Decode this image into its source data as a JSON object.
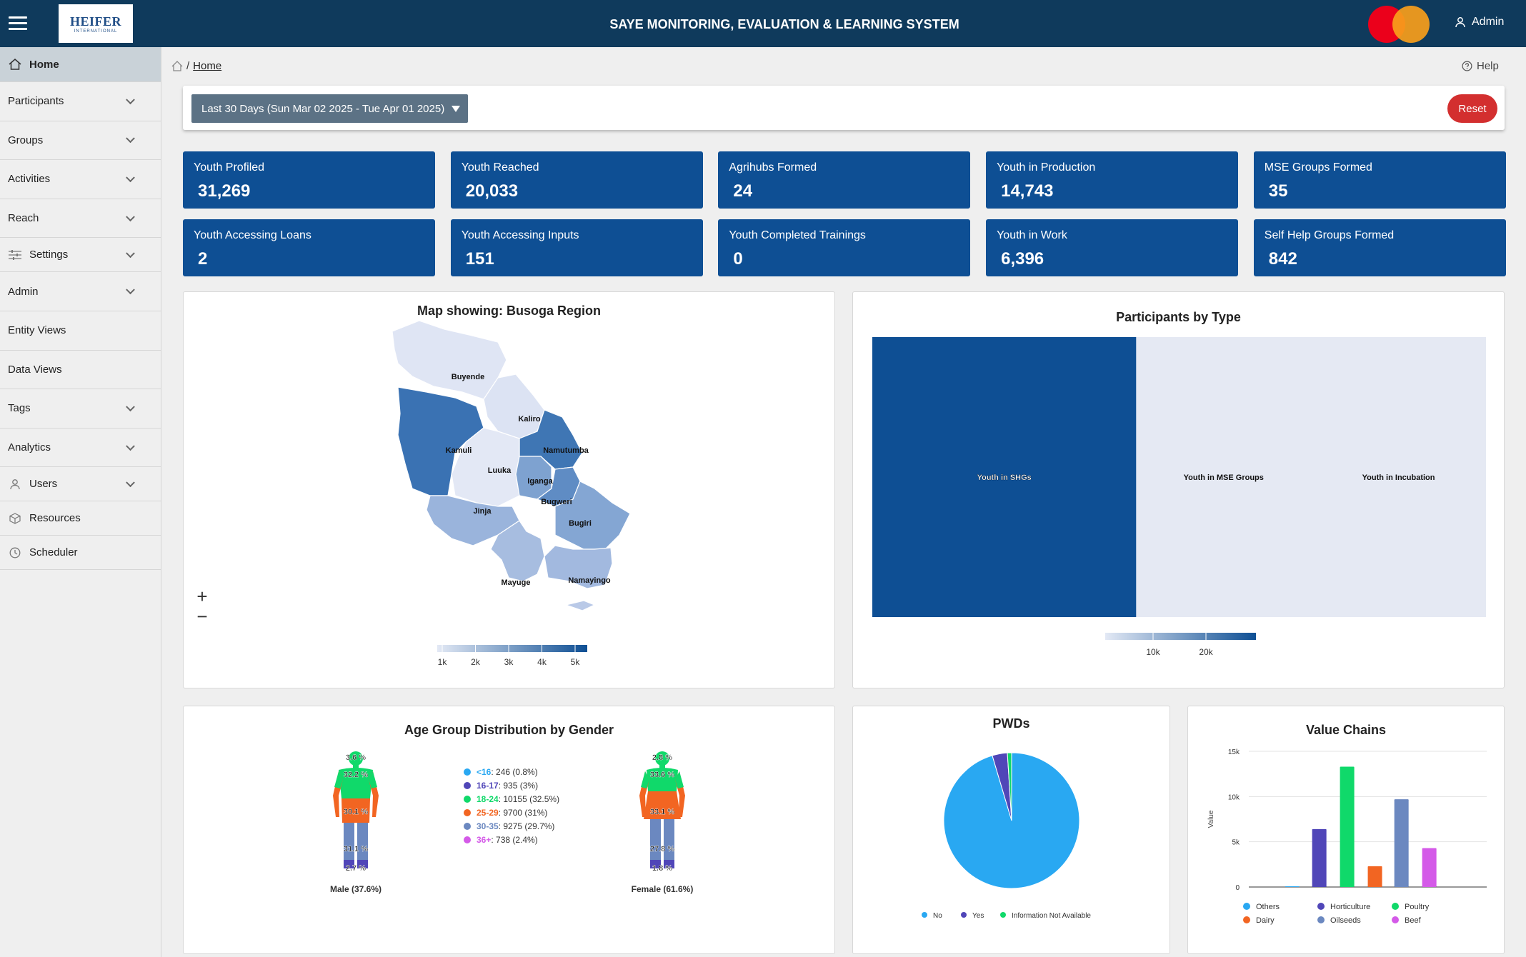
{
  "header": {
    "title": "SAYE MONITORING, EVALUATION & LEARNING SYSTEM",
    "logo_text": "HEIFER",
    "logo_sub": "INTERNATIONAL",
    "user_label": "Admin",
    "icons": {
      "menu": "hamburger-icon",
      "user": "user-icon"
    },
    "colors": {
      "bar": "#0f3a5c"
    }
  },
  "sidebar": {
    "items": [
      {
        "label": "Home",
        "icon": "home-icon",
        "expandable": false
      },
      {
        "label": "Participants",
        "icon": "",
        "expandable": true
      },
      {
        "label": "Groups",
        "icon": "",
        "expandable": true
      },
      {
        "label": "Activities",
        "icon": "",
        "expandable": true
      },
      {
        "label": "Reach",
        "icon": "",
        "expandable": true
      },
      {
        "label": "Settings",
        "icon": "sliders-icon",
        "expandable": true
      },
      {
        "label": "Admin",
        "icon": "",
        "expandable": true
      },
      {
        "label": "Entity Views",
        "icon": "",
        "expandable": false
      },
      {
        "label": "Data Views",
        "icon": "",
        "expandable": false
      },
      {
        "label": "Tags",
        "icon": "",
        "expandable": true
      },
      {
        "label": "Analytics",
        "icon": "",
        "expandable": true
      },
      {
        "label": "Users",
        "icon": "user-icon",
        "expandable": true
      },
      {
        "label": "Resources",
        "icon": "box-icon",
        "expandable": false
      },
      {
        "label": "Scheduler",
        "icon": "clock-icon",
        "expandable": false
      }
    ]
  },
  "breadcrumb": {
    "separator": "/",
    "current": "Home"
  },
  "help_label": "Help",
  "filter": {
    "date_range": "Last 30 Days (Sun Mar 02 2025 - Tue Apr 01 2025)",
    "reset_label": "Reset"
  },
  "kpis": [
    {
      "label": "Youth Profiled",
      "value": "31,269"
    },
    {
      "label": "Youth Reached",
      "value": "20,033"
    },
    {
      "label": "Agrihubs Formed",
      "value": "24"
    },
    {
      "label": "Youth in Production",
      "value": "14,743"
    },
    {
      "label": "MSE Groups Formed",
      "value": "35"
    },
    {
      "label": "Youth Accessing Loans",
      "value": "2"
    },
    {
      "label": "Youth Accessing Inputs",
      "value": "151"
    },
    {
      "label": "Youth Completed Trainings",
      "value": "0"
    },
    {
      "label": "Youth in Work",
      "value": "6,396"
    },
    {
      "label": "Self Help Groups Formed",
      "value": "842"
    }
  ],
  "map": {
    "title": "Map showing: Busoga Region",
    "districts": [
      "Buyende",
      "Kaliro",
      "Kamuli",
      "Namutumba",
      "Luuka",
      "Iganga",
      "Bugweri",
      "Jinja",
      "Bugiri",
      "Mayuge",
      "Namayingo"
    ],
    "legend_ticks": [
      "1k",
      "2k",
      "3k",
      "4k",
      "5k"
    ],
    "zoom_in": "+",
    "zoom_out": "−"
  },
  "chart_data": [
    {
      "type": "heatmap",
      "title": "Participants by Type",
      "categories": [
        "Youth in SHGs",
        "Youth in MSE Groups",
        "Youth in Incubation"
      ],
      "values": [
        27500,
        300,
        120
      ],
      "legend_ticks": [
        "10k",
        "20k"
      ]
    },
    {
      "type": "table",
      "title": "Age Group Distribution by Gender",
      "legend": [
        {
          "range": "<16",
          "text": ": 246 (0.8%)",
          "color": "#29a8f2"
        },
        {
          "range": "16-17",
          "text": ": 935 (3%)",
          "color": "#5046b8"
        },
        {
          "range": "18-24",
          "text": ": 10155 (32.5%)",
          "color": "#10d96a"
        },
        {
          "range": "25-29",
          "text": ": 9700 (31%)",
          "color": "#f26522"
        },
        {
          "range": "30-35",
          "text": ": 9275 (29.7%)",
          "color": "#6b88c0"
        },
        {
          "range": "36+",
          "text": ": 738 (2.4%)",
          "color": "#d45ae8"
        }
      ],
      "male": {
        "label": "Male (37.6%)",
        "pcts": [
          "3.6 %",
          "32.2 %",
          "30.1 %",
          "31.1 %",
          "2.7 %"
        ]
      },
      "female": {
        "label": "Female (61.6%)",
        "pcts": [
          "2.8 %",
          "33.6 %",
          "33.1 %",
          "27.8 %",
          "1.8 %"
        ]
      }
    },
    {
      "type": "pie",
      "title": "PWDs",
      "categories": [
        "No",
        "Yes",
        "Information Not Available"
      ],
      "values": [
        95.4,
        3.6,
        1.0
      ],
      "colors": [
        "#29a8f2",
        "#5046b8",
        "#10d96a"
      ]
    },
    {
      "type": "bar",
      "title": "Value Chains",
      "ylabel": "Value",
      "ylim": [
        0,
        15000
      ],
      "yticks": [
        "0",
        "5k",
        "10k",
        "15k"
      ],
      "categories": [
        "Others",
        "Horticulture",
        "Poultry",
        "Dairy",
        "Oilseeds",
        "Beef"
      ],
      "values": [
        80,
        6400,
        13300,
        2300,
        9700,
        4300
      ],
      "colors": [
        "#29a8f2",
        "#5046b8",
        "#10d96a",
        "#f26522",
        "#6b88c0",
        "#d45ae8"
      ]
    }
  ]
}
